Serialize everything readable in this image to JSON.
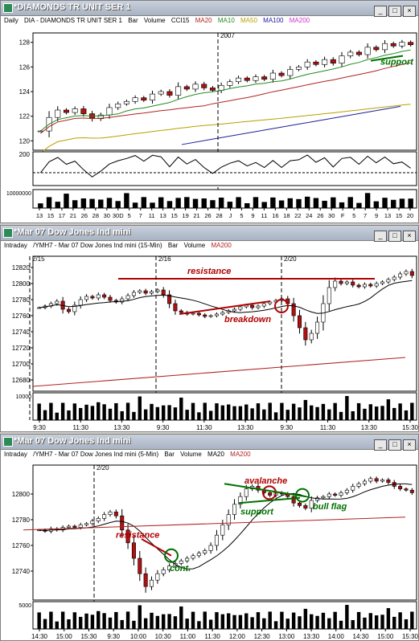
{
  "windows": [
    {
      "title": "*DIAMONDS TR UNIT SER 1",
      "period": "Daily",
      "symbol": "DIA - DIAMONDS TR UNIT SER 1",
      "type": "Bar",
      "volume": "Volume",
      "indicator": "CCI15",
      "ma": [
        {
          "label": "MA20",
          "color": "#b22222"
        },
        {
          "label": "MA10",
          "color": "#228b22"
        },
        {
          "label": "MA50",
          "color": "#b8a000"
        },
        {
          "label": "MA100",
          "color": "#1a1a9a"
        },
        {
          "label": "MA200",
          "color": "#cc33cc"
        }
      ],
      "year_marker": "2007",
      "price_ticks": [
        "128",
        "126",
        "124",
        "122",
        "120"
      ],
      "cci_tick": "200",
      "vol_tick": "10000000",
      "x_labels": [
        "13",
        "15",
        "17",
        "21",
        "26",
        "28",
        "30",
        "30D",
        "5",
        "7",
        "11",
        "13",
        "15",
        "19",
        "21",
        "26",
        "28",
        "J",
        "5",
        "9",
        "11",
        "16",
        "18",
        "22",
        "24",
        "26",
        "30",
        "F",
        "5",
        "7",
        "9",
        "13",
        "15",
        "20"
      ],
      "annotations": [
        {
          "text": "support",
          "color": "#007000"
        }
      ]
    },
    {
      "title": "*Mar 07  Dow Jones Ind mini",
      "period": "Intraday",
      "symbol": "/YMH7 - Mar 07  Dow Jones Ind mini (15-Min)",
      "type": "Bar",
      "volume": "Volume",
      "ma": [
        {
          "label": "MA200",
          "color": "#b22222"
        }
      ],
      "date_markers": [
        "2/15",
        "2/16",
        "2/20"
      ],
      "price_ticks": [
        "12820",
        "12800",
        "12780",
        "12760",
        "12740",
        "12720",
        "12700",
        "12680"
      ],
      "vol_tick": "10000",
      "x_labels": [
        "9:30",
        "11:30",
        "13:30",
        "9:30",
        "11:30",
        "13:30",
        "9:30",
        "11:30",
        "13:30",
        "15:30"
      ],
      "annotations": [
        {
          "text": "resistance",
          "color": "#b00000"
        },
        {
          "text": "breakdown",
          "color": "#b00000"
        }
      ]
    },
    {
      "title": "*Mar 07  Dow Jones Ind mini",
      "period": "Intraday",
      "symbol": "/YMH7 - Mar 07  Dow Jones Ind mini (5-Min)",
      "type": "Bar",
      "volume": "Volume",
      "ma": [
        {
          "label": "MA20",
          "color": "#000000"
        },
        {
          "label": "MA200",
          "color": "#b22222"
        }
      ],
      "date_markers": [
        "2/20"
      ],
      "price_ticks": [
        "12800",
        "12780",
        "12760",
        "12740"
      ],
      "vol_tick": "5000",
      "x_labels": [
        "14:30",
        "15:00",
        "15:30",
        "9:30",
        "10:00",
        "10:30",
        "11:00",
        "11:30",
        "12:00",
        "12:30",
        "13:00",
        "13:30",
        "14:00",
        "14:30",
        "15:00",
        "15:30"
      ],
      "annotations": [
        {
          "text": "avalanche",
          "color": "#b00000"
        },
        {
          "text": "resistance",
          "color": "#b00000"
        },
        {
          "text": "support",
          "color": "#007000"
        },
        {
          "text": "bull flag",
          "color": "#007000"
        },
        {
          "text": "cont.",
          "color": "#007000"
        }
      ]
    }
  ],
  "chart_data": [
    {
      "type": "bar",
      "title": "DIA - DIAMONDS TR UNIT SER 1",
      "period": "Daily",
      "ylim": [
        119.5,
        128.5
      ],
      "close": [
        120.8,
        121.9,
        122.5,
        122.3,
        122.6,
        122.2,
        121.8,
        122.1,
        122.7,
        123.0,
        123.2,
        123.5,
        123.3,
        123.8,
        124.0,
        123.7,
        124.4,
        124.2,
        124.6,
        124.3,
        124.1,
        124.5,
        124.8,
        125.1,
        124.9,
        125.2,
        125.0,
        125.5,
        125.3,
        125.8,
        126.0,
        126.4,
        126.2,
        126.6,
        126.3,
        126.9,
        127.2,
        127.0,
        127.6,
        127.4,
        127.9,
        127.7,
        128.0,
        127.8
      ],
      "series": [
        {
          "name": "MA10",
          "color": "#228b22"
        },
        {
          "name": "MA20",
          "color": "#b22222"
        },
        {
          "name": "MA50",
          "color": "#b8a000"
        },
        {
          "name": "MA100",
          "color": "#1a1a9a"
        }
      ]
    },
    {
      "type": "bar",
      "title": "/YMH7 - Mar 07  Dow Jones Ind mini (15-Min)",
      "period": "15-Min",
      "ylim": [
        12670,
        12830
      ],
      "close": [
        12770,
        12772,
        12775,
        12778,
        12768,
        12765,
        12773,
        12780,
        12784,
        12782,
        12786,
        12783,
        12779,
        12777,
        12781,
        12785,
        12789,
        12791,
        12788,
        12790,
        12792,
        12786,
        12775,
        12766,
        12764,
        12762,
        12763,
        12761,
        12759,
        12760,
        12762,
        12764,
        12766,
        12768,
        12771,
        12773,
        12770,
        12772,
        12775,
        12777,
        12779,
        12781,
        12775,
        12760,
        12745,
        12730,
        12738,
        12752,
        12775,
        12795,
        12803,
        12800,
        12802,
        12798,
        12796,
        12799,
        12797,
        12800,
        12802,
        12805,
        12808,
        12812,
        12815,
        12810
      ],
      "series": [
        {
          "name": "MA200",
          "color": "#b22222"
        }
      ]
    },
    {
      "type": "bar",
      "title": "/YMH7 - Mar 07  Dow Jones Ind mini (5-Min)",
      "period": "5-Min",
      "ylim": [
        12720,
        12820
      ],
      "close": [
        12772,
        12771,
        12773,
        12772,
        12774,
        12775,
        12774,
        12776,
        12777,
        12779,
        12781,
        12784,
        12786,
        12783,
        12772,
        12762,
        12750,
        12738,
        12728,
        12733,
        12738,
        12741,
        12744,
        12746,
        12748,
        12750,
        12752,
        12754,
        12756,
        12760,
        12768,
        12776,
        12784,
        12792,
        12798,
        12804,
        12806,
        12803,
        12801,
        12799,
        12801,
        12800,
        12798,
        12793,
        12791,
        12789,
        12795,
        12797,
        12798,
        12800,
        12799,
        12801,
        12803,
        12806,
        12808,
        12810,
        12812,
        12810,
        12811,
        12809,
        12806,
        12804,
        12803,
        12801
      ],
      "series": [
        {
          "name": "MA20",
          "color": "#000000"
        },
        {
          "name": "MA200",
          "color": "#b22222"
        }
      ]
    }
  ]
}
